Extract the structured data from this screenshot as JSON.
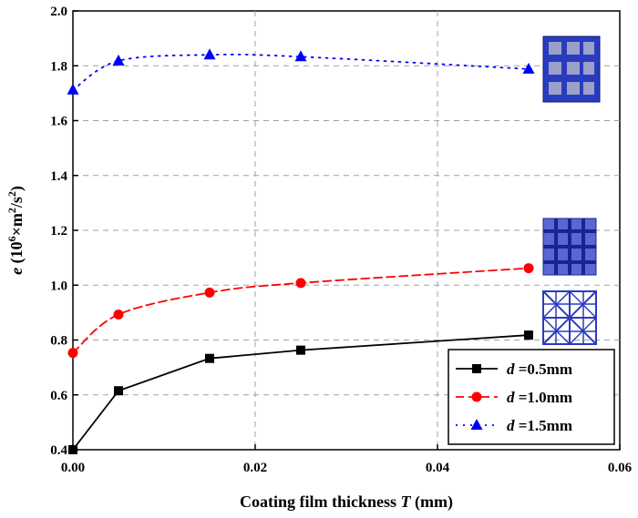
{
  "chart_data": {
    "type": "line",
    "title": "",
    "xlabel_main": "Coating film thickness ",
    "xlabel_var": "T",
    "xlabel_unit": " (mm)",
    "ylabel_var": "e",
    "ylabel_pre": " (10",
    "ylabel_sup1": "6",
    "ylabel_mid": "×m",
    "ylabel_sup2": "2",
    "ylabel_mid2": "/s",
    "ylabel_sup3": "2",
    "ylabel_post": ")",
    "xlim": [
      0,
      0.06
    ],
    "ylim": [
      0.4,
      2.0
    ],
    "xticks": [
      0.0,
      0.02,
      0.04,
      0.06
    ],
    "xtick_labels": [
      "0.00",
      "0.02",
      "0.04",
      "0.06"
    ],
    "yticks": [
      0.4,
      0.6,
      0.8,
      1.0,
      1.2,
      1.4,
      1.6,
      1.8,
      2.0
    ],
    "ytick_labels": [
      "0.4",
      "0.6",
      "0.8",
      "1.0",
      "1.2",
      "1.4",
      "1.6",
      "1.8",
      "2.0"
    ],
    "grid": true,
    "legend_position": "bottom-right",
    "series": [
      {
        "name_var": "d",
        "name_rest": " =0.5mm",
        "color": "#000000",
        "marker": "square",
        "line_style": "solid",
        "x": [
          0.0,
          0.005,
          0.015,
          0.025,
          0.05
        ],
        "y": [
          0.4,
          0.615,
          0.733,
          0.763,
          0.818
        ]
      },
      {
        "name_var": "d",
        "name_rest": " =1.0mm",
        "color": "#ff0000",
        "marker": "circle",
        "line_style": "dashed",
        "x": [
          0.0,
          0.005,
          0.015,
          0.025,
          0.05
        ],
        "y": [
          0.753,
          0.893,
          0.973,
          1.008,
          1.062
        ]
      },
      {
        "name_var": "d",
        "name_rest": " =1.5mm",
        "color": "#0000ff",
        "marker": "triangle",
        "line_style": "dotted",
        "x": [
          0.0,
          0.005,
          0.015,
          0.025,
          0.05
        ],
        "y": [
          1.712,
          1.818,
          1.84,
          1.833,
          1.788
        ]
      }
    ]
  }
}
